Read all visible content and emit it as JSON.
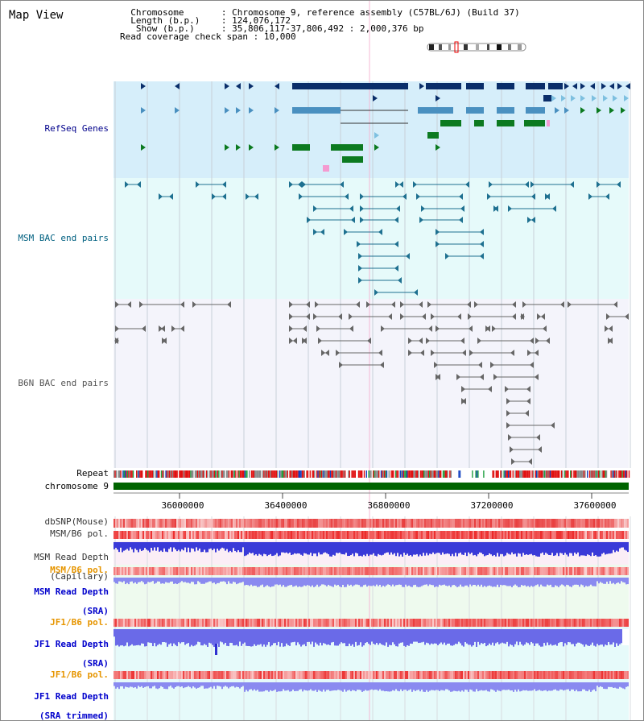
{
  "view": {
    "title": "Map View",
    "info_rows": [
      {
        "label": "Chromosome",
        "value": "Chromosome 9, reference assembly (C57BL/6J) (Build 37)"
      },
      {
        "label": "Length (b.p.)",
        "value": "124,076,172"
      },
      {
        "label": "Show (b.p.)",
        "value": "35,806,117-37,806,492 : 2,000,376 bp"
      },
      {
        "label": "Read coverage check span",
        "value": "10,000"
      }
    ],
    "show_start_bp": 35806117,
    "show_end_bp": 37806492
  },
  "tracks": {
    "refseq": "RefSeq Genes",
    "msm_bac": "MSM BAC end pairs",
    "b6n_bac": "B6N BAC end pairs",
    "repeat": "Repeat",
    "chromosome": "chromosome 9",
    "dbsnp": "dbSNP(Mouse)",
    "msm_b6_pol": "MSM/B6 pol.",
    "msm_depth_cap_1": "MSM Read Depth",
    "msm_depth_cap_2": "(Capillary)",
    "msm_b6_pol_sra": "MSM/B6 pol.",
    "msm_depth_sra_1": "MSM Read Depth",
    "msm_depth_sra_2": "(SRA)",
    "jf1_b6_pol": "JF1/B6 pol.",
    "jf1_depth_sra_1": "JF1 Read Depth",
    "jf1_depth_sra_2": "(SRA)",
    "jf1_b6_pol_trim": "JF1/B6 pol.",
    "jf1_depth_trim_1": "JF1 Read Depth",
    "jf1_depth_trim_2": "(SRA trimmed)"
  },
  "axis_ticks": [
    "36000000",
    "36400000",
    "36800000",
    "37200000",
    "37600000"
  ],
  "colors": {
    "refseq_label": "#00008b",
    "msm_label": "#006080",
    "b6n_label": "#555555",
    "yellow_label": "#e69500",
    "blue_label": "#0000cc",
    "chrom_band": "#006400"
  }
}
